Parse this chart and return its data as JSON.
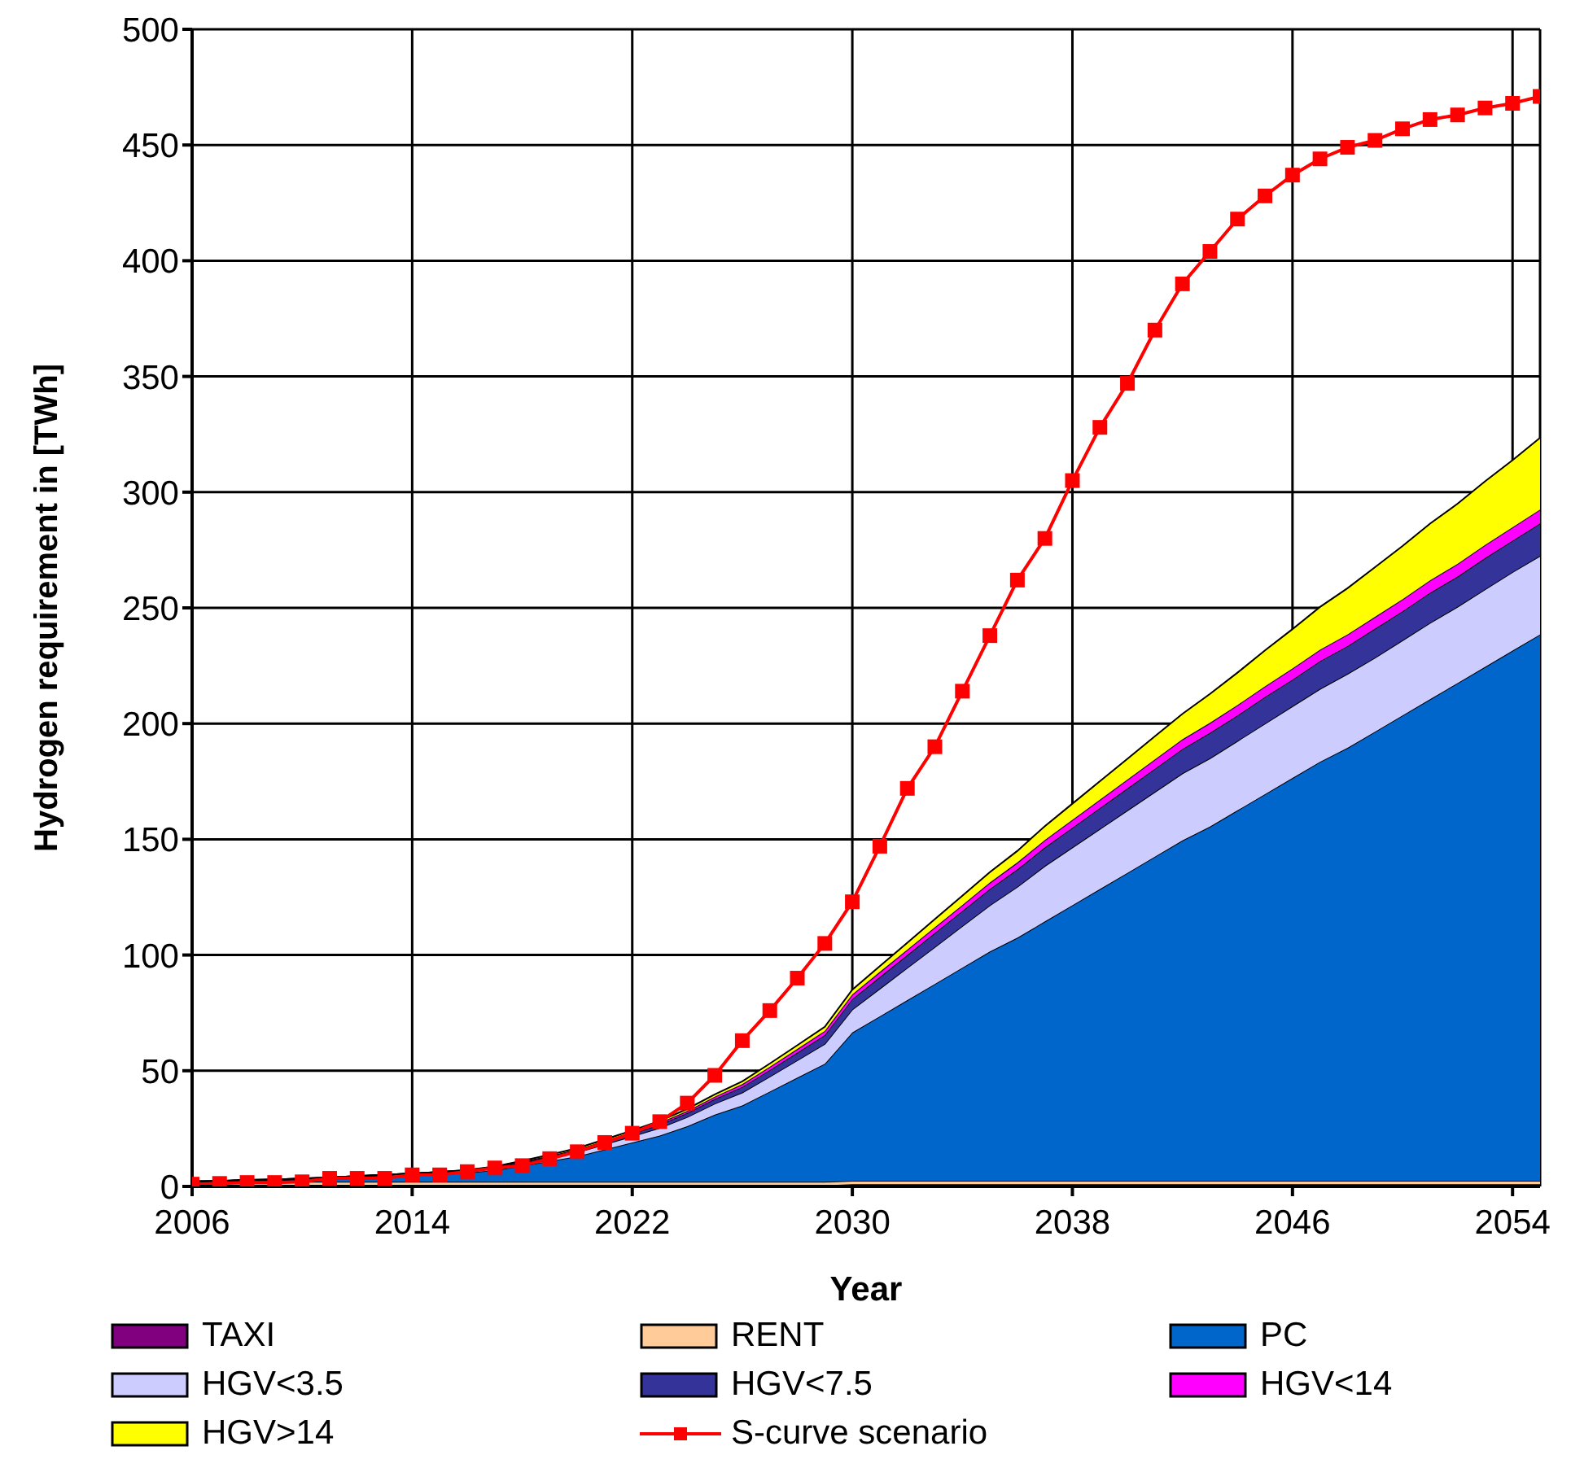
{
  "chart_data": {
    "type": "area",
    "xlabel": "Year",
    "ylabel": "Hydrogen requirement in [TWh]",
    "x": [
      2006,
      2007,
      2008,
      2009,
      2010,
      2011,
      2012,
      2013,
      2014,
      2015,
      2016,
      2017,
      2018,
      2019,
      2020,
      2021,
      2022,
      2023,
      2024,
      2025,
      2026,
      2027,
      2028,
      2029,
      2030,
      2031,
      2032,
      2033,
      2034,
      2035,
      2036,
      2037,
      2038,
      2039,
      2040,
      2041,
      2042,
      2043,
      2044,
      2045,
      2046,
      2047,
      2048,
      2049,
      2050,
      2051,
      2052,
      2053,
      2054,
      2055
    ],
    "stacked": true,
    "series": [
      {
        "name": "TAXI",
        "color": "#800080",
        "values": [
          0.5,
          0.5,
          0.5,
          0.5,
          0.5,
          0.5,
          0.5,
          0.5,
          0.5,
          0.5,
          0.5,
          0.5,
          0.5,
          0.5,
          0.5,
          0.5,
          0.5,
          0.5,
          0.5,
          0.5,
          0.5,
          0.5,
          0.5,
          0.5,
          1,
          1,
          1,
          1,
          1,
          1,
          1,
          1,
          1,
          1,
          1,
          1,
          1,
          1,
          1,
          1,
          1,
          1,
          1,
          1,
          1,
          1,
          1,
          1,
          1,
          1
        ]
      },
      {
        "name": "RENT",
        "color": "#ffcc99",
        "values": [
          1.5,
          1.5,
          1.5,
          1.5,
          1.5,
          1.5,
          1.5,
          1.5,
          1.5,
          1.5,
          1.5,
          1.5,
          1.5,
          1.5,
          1.5,
          1.5,
          1.5,
          1.5,
          1.5,
          1.5,
          1.5,
          1.5,
          1.5,
          1.5,
          1.5,
          1.5,
          1.5,
          1.5,
          1.5,
          1.5,
          1.5,
          1.5,
          1.5,
          1.5,
          1.5,
          1.5,
          1.5,
          1.5,
          1.5,
          1.5,
          1.5,
          1.5,
          1.5,
          1.5,
          1.5,
          1.5,
          1.5,
          1.5,
          1.5,
          1.5
        ]
      },
      {
        "name": "PC",
        "color": "#0066cc",
        "values": [
          0,
          0.2,
          0.5,
          0.7,
          1,
          1.5,
          2,
          2.5,
          3,
          3.5,
          4,
          5,
          7,
          9,
          11,
          14,
          17,
          20,
          24,
          29,
          33,
          39,
          45,
          51,
          64,
          71,
          78,
          85,
          92,
          99,
          105,
          112,
          119,
          126,
          133,
          140,
          147,
          153,
          160,
          167,
          174,
          181,
          187,
          194,
          201,
          208,
          215,
          222,
          229,
          236
        ]
      },
      {
        "name": "HGV<3.5",
        "color": "#ccccff",
        "values": [
          0.1,
          0.1,
          0.2,
          0.2,
          0.3,
          0.3,
          0.4,
          0.4,
          0.5,
          0.6,
          0.7,
          0.9,
          1.1,
          1.4,
          1.8,
          2.2,
          2.7,
          3.3,
          4,
          4.8,
          5.6,
          6.5,
          7.5,
          8.6,
          10,
          12,
          14,
          16,
          18,
          20,
          22,
          24,
          25,
          26,
          27,
          28,
          29,
          29.5,
          30,
          30.5,
          31,
          31.5,
          32,
          32,
          32.5,
          33,
          33,
          33.5,
          34,
          34
        ]
      },
      {
        "name": "HGV<7.5",
        "color": "#333399",
        "values": [
          0.1,
          0.1,
          0.1,
          0.1,
          0.1,
          0.1,
          0.1,
          0.1,
          0.1,
          0.1,
          0.2,
          0.3,
          0.4,
          0.5,
          0.7,
          0.9,
          1.1,
          1.4,
          1.7,
          2,
          2.4,
          2.8,
          3.3,
          3.8,
          4.5,
          5,
          5.5,
          6,
          6.5,
          7,
          7.5,
          8,
          8.5,
          9,
          9.5,
          10,
          10.5,
          11,
          11,
          11.5,
          11.5,
          12,
          12,
          12.5,
          12.5,
          13,
          13,
          13.5,
          13.5,
          14
        ]
      },
      {
        "name": "HGV<14",
        "color": "#ff00ff",
        "values": [
          0,
          0,
          0,
          0,
          0,
          0,
          0,
          0,
          0,
          0,
          0.1,
          0.2,
          0.3,
          0.4,
          0.5,
          0.6,
          0.7,
          0.8,
          0.9,
          1,
          1.2,
          1.4,
          1.6,
          1.8,
          2,
          2.2,
          2.3,
          2.5,
          2.6,
          2.8,
          3,
          3.2,
          3.4,
          3.6,
          3.8,
          4,
          4.2,
          4.3,
          4.5,
          4.6,
          4.8,
          4.9,
          5,
          5.1,
          5.2,
          5.4,
          5.5,
          5.7,
          5.8,
          6
        ]
      },
      {
        "name": "HGV>14",
        "color": "#ffff00",
        "values": [
          0,
          0,
          0,
          0,
          0,
          0,
          0,
          0,
          0,
          0,
          0.1,
          0.2,
          0.3,
          0.4,
          0.5,
          0.6,
          0.7,
          0.8,
          0.9,
          1,
          1.2,
          1.4,
          1.6,
          1.8,
          2,
          2.5,
          3,
          3.5,
          4,
          4.5,
          5,
          6,
          7,
          8,
          9,
          10,
          11,
          12.5,
          14,
          15.5,
          17,
          18.5,
          20,
          21.5,
          23,
          24.5,
          26,
          27.5,
          29,
          31
        ]
      },
      {
        "name": "S-curve scenario",
        "type": "line",
        "color": "#ff0000",
        "marker": "square",
        "values": [
          1,
          1.3,
          1.7,
          1.7,
          2,
          3.5,
          3.5,
          3.5,
          5,
          5,
          6.4,
          8,
          9,
          12,
          15,
          19,
          23,
          28,
          36,
          48,
          63,
          76,
          90,
          105,
          123,
          147,
          172,
          190,
          214,
          238,
          262,
          280,
          305,
          328,
          347,
          370,
          390,
          404,
          418,
          428,
          437,
          444,
          449,
          452,
          457,
          461,
          463,
          466,
          468,
          471
        ]
      }
    ],
    "xlim": [
      2006,
      2055
    ],
    "xticks": [
      2006,
      2014,
      2022,
      2030,
      2038,
      2046,
      2054
    ],
    "ylim": [
      0,
      500
    ],
    "yticks": [
      0,
      50,
      100,
      150,
      200,
      250,
      300,
      350,
      400,
      450,
      500
    ],
    "grid": true,
    "legend": "bottom"
  }
}
